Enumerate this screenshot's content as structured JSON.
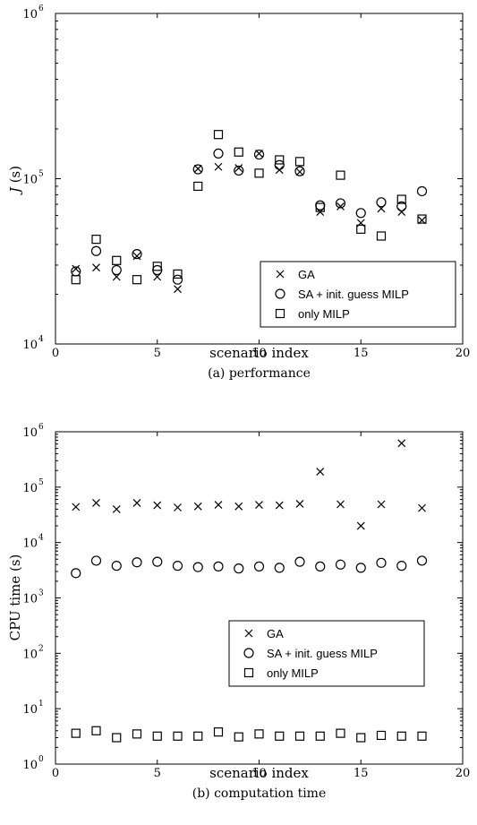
{
  "chart_data": [
    {
      "type": "scatter",
      "xlabel": "scenario index",
      "ylabel_italic": "J",
      "ylabel_rest": " (s)",
      "caption": "(a)  performance",
      "yscale": "log",
      "xlim": [
        0,
        20
      ],
      "ylim": [
        10000,
        1000000
      ],
      "xticks": [
        "0",
        "5",
        "10",
        "15",
        "20"
      ],
      "yticks": [
        {
          "base": "10",
          "exp": "4"
        },
        {
          "base": "10",
          "exp": "5"
        },
        {
          "base": "10",
          "exp": "6"
        }
      ],
      "legend_position": "bottom-right",
      "series": [
        {
          "name": "GA",
          "marker": "x",
          "x": [
            1,
            2,
            3,
            4,
            5,
            6,
            7,
            8,
            9,
            10,
            11,
            12,
            13,
            14,
            15,
            16,
            17,
            18
          ],
          "y": [
            28500,
            29000,
            25500,
            34000,
            25500,
            21500,
            115000,
            118000,
            116000,
            142000,
            113000,
            110000,
            63000,
            68000,
            54000,
            66000,
            63000,
            56000
          ]
        },
        {
          "name": "SA + init. guess MILP",
          "marker": "circle",
          "x": [
            1,
            2,
            3,
            4,
            5,
            6,
            7,
            8,
            9,
            10,
            11,
            12,
            13,
            14,
            15,
            16,
            17,
            18
          ],
          "y": [
            27500,
            36500,
            28000,
            35000,
            28000,
            24500,
            114000,
            142000,
            112000,
            140000,
            121000,
            111000,
            69000,
            71000,
            62000,
            72000,
            68000,
            84000
          ]
        },
        {
          "name": "only MILP",
          "marker": "square",
          "x": [
            1,
            2,
            3,
            4,
            5,
            6,
            7,
            8,
            9,
            10,
            11,
            12,
            13,
            14,
            15,
            16,
            17,
            18
          ],
          "y": [
            24500,
            43000,
            32000,
            24500,
            29500,
            26500,
            90000,
            185000,
            145000,
            108000,
            130000,
            127000,
            67000,
            105000,
            49500,
            45000,
            75000,
            57000
          ]
        }
      ]
    },
    {
      "type": "scatter",
      "xlabel": "scenario index",
      "ylabel": "CPU time (s)",
      "caption": "(b)  computation time",
      "yscale": "log",
      "xlim": [
        0,
        20
      ],
      "ylim": [
        1,
        1000000
      ],
      "xticks": [
        "0",
        "5",
        "10",
        "15",
        "20"
      ],
      "yticks": [
        {
          "base": "10",
          "exp": "0"
        },
        {
          "base": "10",
          "exp": "1"
        },
        {
          "base": "10",
          "exp": "2"
        },
        {
          "base": "10",
          "exp": "3"
        },
        {
          "base": "10",
          "exp": "4"
        },
        {
          "base": "10",
          "exp": "5"
        },
        {
          "base": "10",
          "exp": "6"
        }
      ],
      "legend_position": "center-right",
      "series": [
        {
          "name": "GA",
          "marker": "x",
          "x": [
            1,
            2,
            3,
            4,
            5,
            6,
            7,
            8,
            9,
            10,
            11,
            12,
            13,
            14,
            15,
            16,
            17,
            18
          ],
          "y": [
            44000,
            52000,
            40000,
            52000,
            47000,
            43000,
            45000,
            48000,
            45000,
            48000,
            47000,
            50000,
            190000,
            49000,
            20000,
            49000,
            620000,
            42000
          ]
        },
        {
          "name": "SA + init. guess MILP",
          "marker": "circle",
          "x": [
            1,
            2,
            3,
            4,
            5,
            6,
            7,
            8,
            9,
            10,
            11,
            12,
            13,
            14,
            15,
            16,
            17,
            18
          ],
          "y": [
            2800,
            4700,
            3800,
            4400,
            4500,
            3800,
            3600,
            3700,
            3400,
            3700,
            3500,
            4500,
            3700,
            4000,
            3500,
            4300,
            3800,
            4700
          ]
        },
        {
          "name": "only MILP",
          "marker": "square",
          "x": [
            1,
            2,
            3,
            4,
            5,
            6,
            7,
            8,
            9,
            10,
            11,
            12,
            13,
            14,
            15,
            16,
            17,
            18
          ],
          "y": [
            3.6,
            4.0,
            3.0,
            3.5,
            3.2,
            3.2,
            3.2,
            3.8,
            3.1,
            3.5,
            3.2,
            3.2,
            3.2,
            3.6,
            3.0,
            3.3,
            3.2,
            3.2
          ]
        }
      ]
    }
  ]
}
